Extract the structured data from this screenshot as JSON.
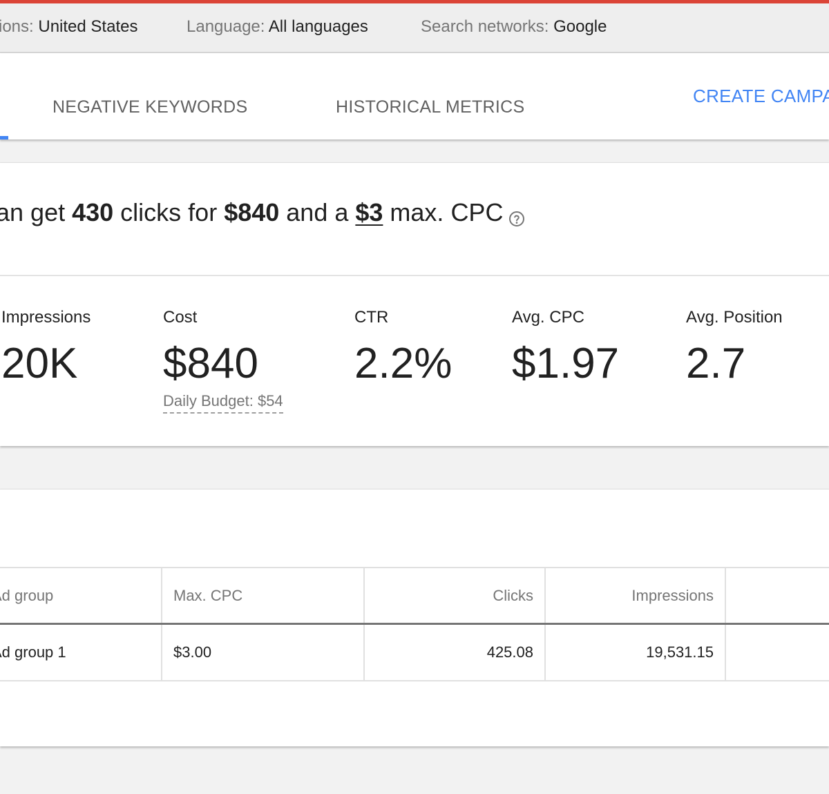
{
  "colors": {
    "accent_red": "#db4437",
    "link_blue": "#4285f4"
  },
  "filters": [
    {
      "label": "ions:",
      "value": "United States"
    },
    {
      "label": "Language:",
      "value": "All languages"
    },
    {
      "label": "Search networks:",
      "value": "Google"
    }
  ],
  "tabs": {
    "negative_keywords": "NEGATIVE KEYWORDS",
    "historical_metrics": "HISTORICAL METRICS",
    "create_campaign": "CREATE CAMPA"
  },
  "summary": {
    "prefix": "an get ",
    "clicks": "430",
    "mid1": " clicks for ",
    "cost": "$840",
    "mid2": " and a ",
    "max_cpc": "$3",
    "suffix": " max. CPC",
    "help_icon": "help-circle-icon"
  },
  "metrics": {
    "impressions": {
      "label": "Impressions",
      "value": "20K"
    },
    "cost": {
      "label": "Cost",
      "value": "$840",
      "sub": "Daily Budget: $54"
    },
    "ctr": {
      "label": "CTR",
      "value": "2.2%"
    },
    "avg_cpc": {
      "label": "Avg. CPC",
      "value": "$1.97"
    },
    "avg_position": {
      "label": "Avg. Position",
      "value": "2.7"
    }
  },
  "table": {
    "headers": {
      "ad_group": "Ad group",
      "max_cpc": "Max. CPC",
      "clicks": "Clicks",
      "impressions": "Impressions"
    },
    "rows": [
      {
        "ad_group": "Ad group 1",
        "max_cpc": "$3.00",
        "clicks": "425.08",
        "impressions": "19,531.15"
      }
    ]
  }
}
